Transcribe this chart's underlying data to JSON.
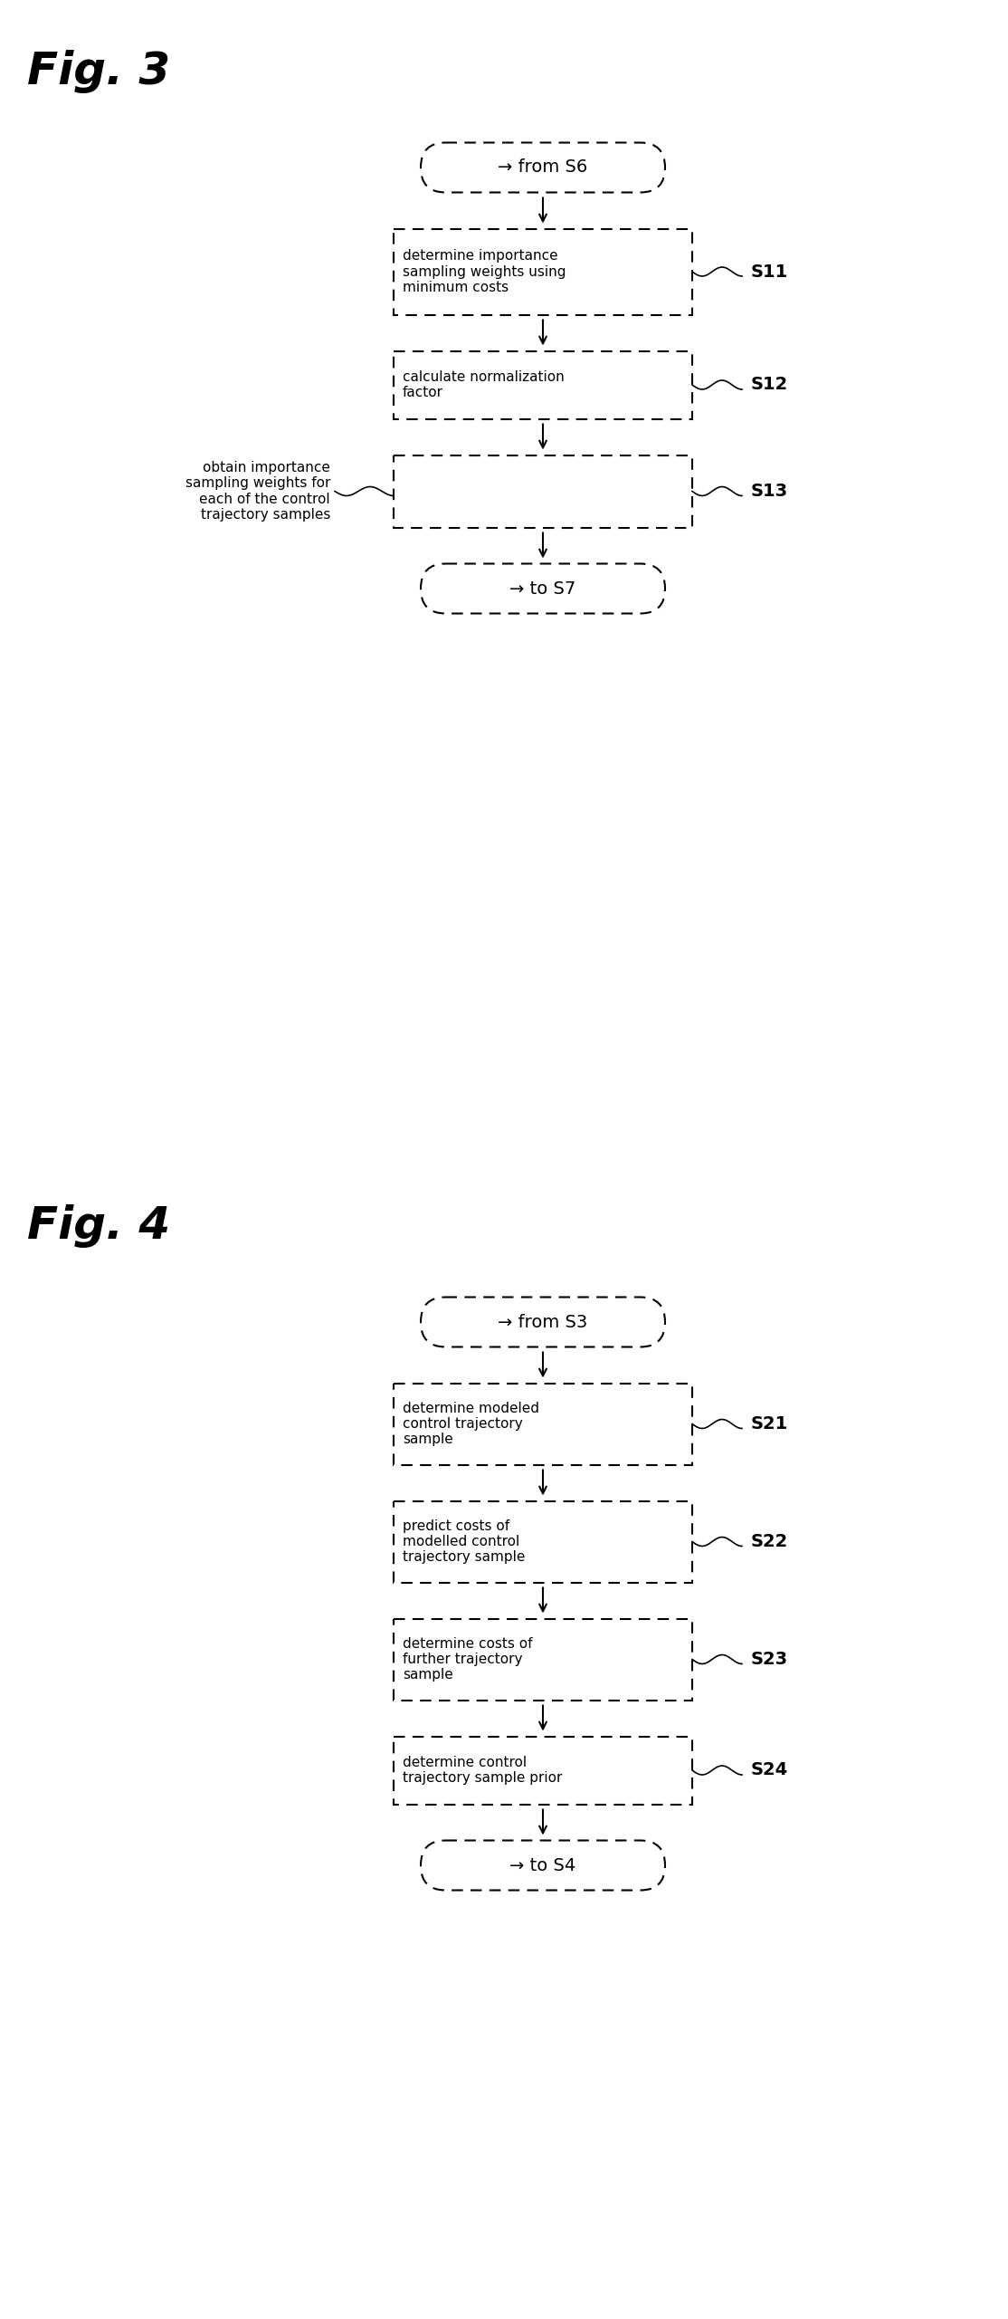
{
  "fig3_title": "Fig. 3",
  "fig4_title": "Fig. 4",
  "background_color": "#ffffff",
  "text_color": "#000000",
  "fig3": {
    "start_label": "→ from S6",
    "end_label": "→ to S7",
    "steps": [
      {
        "label": "determine importance\nsampling weights using\nminimum costs",
        "step_id": "S11",
        "left_annotation": null
      },
      {
        "label": "calculate normalization\nfactor",
        "step_id": "S12",
        "left_annotation": null
      },
      {
        "label": "",
        "step_id": "S13",
        "left_annotation": "obtain importance\nsampling weights for\neach of the control\ntrajectory samples"
      }
    ]
  },
  "fig4": {
    "start_label": "→ from S3",
    "end_label": "→ to S4",
    "steps": [
      {
        "label": "determine modeled\ncontrol trajectory\nsample",
        "step_id": "S21",
        "left_annotation": null
      },
      {
        "label": "predict costs of\nmodelled control\ntrajectory sample",
        "step_id": "S22",
        "left_annotation": null
      },
      {
        "label": "determine costs of\nfurther trajectory\nsample",
        "step_id": "S23",
        "left_annotation": null
      },
      {
        "label": "determine control\ntrajectory sample prior",
        "step_id": "S24",
        "left_annotation": null
      }
    ]
  }
}
